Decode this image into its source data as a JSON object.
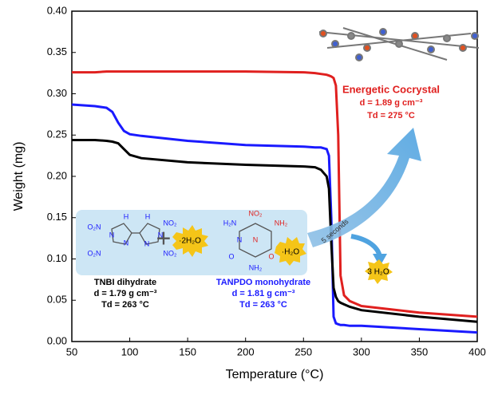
{
  "chart_data": {
    "type": "line",
    "x_label": "Temperature (°C)",
    "y_label": "Weight (mg)",
    "x": [
      50,
      70,
      80,
      85,
      90,
      95,
      100,
      110,
      150,
      200,
      250,
      260,
      265,
      270,
      272,
      274,
      276,
      278,
      280,
      282,
      285,
      290,
      300,
      350,
      400
    ],
    "series": [
      {
        "name": "Energetic Cocrystal",
        "color": "#e0201f",
        "values": [
          0.326,
          0.326,
          0.327,
          0.327,
          0.327,
          0.327,
          0.327,
          0.327,
          0.327,
          0.327,
          0.326,
          0.325,
          0.324,
          0.323,
          0.322,
          0.321,
          0.319,
          0.31,
          0.25,
          0.08,
          0.056,
          0.049,
          0.043,
          0.035,
          0.03
        ]
      },
      {
        "name": "TANPDO monohydrate",
        "color": "#1a1aff",
        "values": [
          0.287,
          0.285,
          0.283,
          0.278,
          0.265,
          0.255,
          0.251,
          0.249,
          0.243,
          0.238,
          0.236,
          0.235,
          0.235,
          0.233,
          0.225,
          0.15,
          0.03,
          0.022,
          0.021,
          0.02,
          0.02,
          0.019,
          0.019,
          0.015,
          0.011
        ]
      },
      {
        "name": "TNBI dihydrate",
        "color": "#000000",
        "values": [
          0.244,
          0.244,
          0.243,
          0.242,
          0.24,
          0.233,
          0.226,
          0.222,
          0.217,
          0.214,
          0.212,
          0.211,
          0.208,
          0.2,
          0.185,
          0.12,
          0.065,
          0.054,
          0.049,
          0.047,
          0.045,
          0.042,
          0.038,
          0.03,
          0.024
        ]
      }
    ],
    "xlim": [
      50,
      400
    ],
    "xticks": [
      50,
      100,
      150,
      200,
      250,
      300,
      350,
      400
    ],
    "ylim": [
      0,
      0.4
    ],
    "yticks": [
      {
        "value": 0,
        "label": "0.00"
      },
      {
        "value": 0.05,
        "label": "0.05"
      },
      {
        "value": 0.1,
        "label": "0.10"
      },
      {
        "value": 0.15,
        "label": "0.15"
      },
      {
        "value": 0.2,
        "label": "0.20"
      },
      {
        "value": 0.25,
        "label": "0.25"
      },
      {
        "value": 0.3,
        "label": "0.30"
      },
      {
        "value": 0.35,
        "label": "0.35"
      },
      {
        "value": 0.4,
        "label": "0.40"
      }
    ],
    "annotations": [
      "Energetic Cocrystal",
      "d = 1.89 g cm⁻³",
      "Td = 275 °C",
      "TNBI dihydrate",
      "d = 1.79 g cm⁻³",
      "Td = 263 °C",
      "TANPDO monohydrate",
      "d = 1.81 g cm⁻³",
      "Td = 263 °C",
      "5 seconds",
      "3 H₂O",
      "·2H₂O",
      "·H₂O"
    ],
    "structure_labels": [
      "O₂N",
      "O₂N",
      "N",
      "N",
      "H",
      "H",
      "N",
      "N",
      "NO₂",
      "NO₂",
      "NO₂",
      "H₂N",
      "NH₂",
      "N",
      "N",
      "O",
      "O",
      "NH₂"
    ]
  }
}
